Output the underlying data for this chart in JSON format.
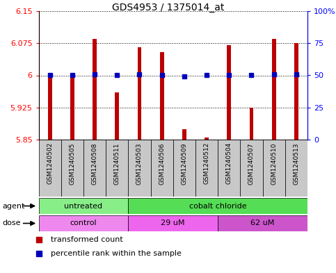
{
  "title": "GDS4953 / 1375014_at",
  "samples": [
    "GSM1240502",
    "GSM1240505",
    "GSM1240508",
    "GSM1240511",
    "GSM1240503",
    "GSM1240506",
    "GSM1240509",
    "GSM1240512",
    "GSM1240504",
    "GSM1240507",
    "GSM1240510",
    "GSM1240513"
  ],
  "transformed_count": [
    6.0,
    6.0,
    6.085,
    5.96,
    6.065,
    6.055,
    5.875,
    5.855,
    6.07,
    5.925,
    6.085,
    6.075
  ],
  "percentile_rank": [
    50,
    50,
    51,
    50,
    51,
    50,
    49,
    50,
    50,
    50,
    51,
    51
  ],
  "ylim_left": [
    5.85,
    6.15
  ],
  "ylim_right": [
    0,
    100
  ],
  "yticks_left": [
    5.85,
    5.925,
    6.0,
    6.075,
    6.15
  ],
  "yticks_right": [
    0,
    25,
    50,
    75,
    100
  ],
  "ytick_labels_left": [
    "5.85",
    "5.925",
    "6",
    "6.075",
    "6.15"
  ],
  "ytick_labels_right": [
    "0",
    "25",
    "50",
    "75",
    "100%"
  ],
  "baseline": 5.85,
  "agent_groups": [
    {
      "label": "untreated",
      "start": 0,
      "end": 3,
      "color": "#88EE88"
    },
    {
      "label": "cobalt chloride",
      "start": 4,
      "end": 11,
      "color": "#55DD55"
    }
  ],
  "dose_groups": [
    {
      "label": "control",
      "start": 0,
      "end": 3,
      "color": "#EE88EE"
    },
    {
      "label": "29 uM",
      "start": 4,
      "end": 7,
      "color": "#EE66EE"
    },
    {
      "label": "62 uM",
      "start": 8,
      "end": 11,
      "color": "#CC55CC"
    }
  ],
  "bar_color": "#BB0000",
  "dot_color": "#0000BB",
  "bar_width": 0.18,
  "sample_bg_color": "#C8C8C8",
  "legend_red_label": "transformed count",
  "legend_blue_label": "percentile rank within the sample"
}
